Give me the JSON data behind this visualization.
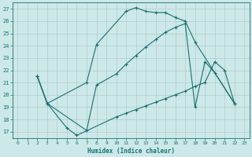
{
  "xlabel": "Humidex (Indice chaleur)",
  "ylabel": "",
  "xlim": [
    -0.5,
    23.5
  ],
  "ylim": [
    16.5,
    27.5
  ],
  "xticks": [
    0,
    1,
    2,
    3,
    4,
    5,
    6,
    7,
    8,
    9,
    10,
    11,
    12,
    13,
    14,
    15,
    16,
    17,
    18,
    19,
    20,
    21,
    22,
    23
  ],
  "yticks": [
    17,
    18,
    19,
    20,
    21,
    22,
    23,
    24,
    25,
    26,
    27
  ],
  "background_color": "#cce8e8",
  "grid_color": "#b0cccc",
  "line_color": "#1a7070",
  "figsize": [
    3.2,
    2.0
  ],
  "dpi": 100,
  "lines": [
    {
      "x": [
        2,
        3,
        7,
        8,
        11,
        12,
        13,
        14,
        15,
        16,
        17,
        18,
        22
      ],
      "y": [
        21.5,
        19.3,
        21.0,
        24.1,
        26.8,
        27.1,
        26.8,
        26.7,
        26.7,
        26.3,
        26.0,
        24.3,
        19.3
      ]
    },
    {
      "x": [
        2,
        3,
        7,
        8,
        10,
        11,
        12,
        13,
        14,
        15,
        16,
        17,
        18,
        19,
        20,
        22
      ],
      "y": [
        21.5,
        19.3,
        17.1,
        20.8,
        21.7,
        22.5,
        23.2,
        23.9,
        24.5,
        25.1,
        25.5,
        25.8,
        19.0,
        22.7,
        21.8,
        19.3
      ]
    },
    {
      "x": [
        2,
        3,
        5,
        6,
        10,
        11,
        12,
        13,
        14,
        15,
        16,
        17,
        18,
        19,
        20,
        21,
        22
      ],
      "y": [
        21.5,
        19.3,
        17.3,
        16.7,
        18.2,
        18.5,
        18.8,
        19.1,
        19.4,
        19.7,
        20.0,
        20.3,
        20.7,
        21.0,
        22.7,
        22.0,
        19.3
      ]
    }
  ]
}
